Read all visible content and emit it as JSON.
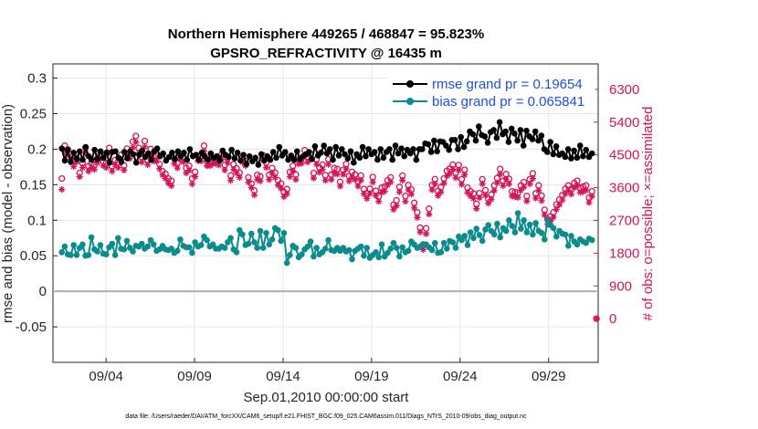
{
  "chart_data": {
    "type": "line",
    "title_line1": "Northern Hemisphere 449265 / 468847 = 95.823%",
    "title_line2": "GPSRO_REFRACTIVITY @ 16435 m",
    "xlabel": "Sep.01,2010 00:00:00 start",
    "ylabel_left": "rmse and bias (model - observation)",
    "ylabel_right": "# of obs: o=possible; ×=assimilated",
    "footer": "data file: /Users/raeder/DAI/ATM_forcXX/CAM6_setup/f.e21.FHIST_BGC.f09_025.CAM6assim.011/Diags_NTrS_2010-09/obs_diag_output.nc",
    "x_start_day": 1,
    "x_range_days": [
      1.0,
      31.8
    ],
    "x_ticks": [
      {
        "day": 4,
        "label": "09/04"
      },
      {
        "day": 9,
        "label": "09/09"
      },
      {
        "day": 14,
        "label": "09/14"
      },
      {
        "day": 19,
        "label": "09/19"
      },
      {
        "day": 24,
        "label": "09/24"
      },
      {
        "day": 29,
        "label": "09/29"
      }
    ],
    "ylim_left": [
      -0.1,
      0.32
    ],
    "yticks_left": [
      "-0.05",
      "0",
      "0.05",
      "0.1",
      "0.15",
      "0.2",
      "0.25",
      "0.3"
    ],
    "yticks_left_values": [
      -0.05,
      0,
      0.05,
      0.1,
      0.15,
      0.2,
      0.25,
      0.3
    ],
    "ylim_right": [
      -1200,
      7000
    ],
    "yticks_right": [
      "0",
      "900",
      "1800",
      "2700",
      "3600",
      "4500",
      "5400",
      "6300"
    ],
    "yticks_right_values": [
      0,
      900,
      1800,
      2700,
      3600,
      4500,
      5400,
      6300
    ],
    "zero_line": true,
    "grid": true,
    "legend_placement": "top-right",
    "colors": {
      "rmse": "#000000",
      "bias": "#0a8c8c",
      "obs": "#d4145a",
      "legend_text": "#1f4fe0",
      "zero_line": "#b0b0b0",
      "grid": "#e6e6e6"
    },
    "series": [
      {
        "name": "rmse grand pr = 0.19654",
        "key": "rmse",
        "axis": "left",
        "style": "line-dot",
        "values": [
          0.201,
          0.184,
          0.199,
          0.182,
          0.195,
          0.186,
          0.197,
          0.185,
          0.203,
          0.19,
          0.185,
          0.199,
          0.186,
          0.197,
          0.188,
          0.195,
          0.181,
          0.196,
          0.197,
          0.188,
          0.182,
          0.196,
          0.187,
          0.197,
          0.193,
          0.181,
          0.192,
          0.198,
          0.189,
          0.194,
          0.185,
          0.197,
          0.201,
          0.19,
          0.194,
          0.184,
          0.189,
          0.195,
          0.186,
          0.197,
          0.19,
          0.195,
          0.185,
          0.2,
          0.19,
          0.192,
          0.185,
          0.195,
          0.19,
          0.185,
          0.194,
          0.188,
          0.19,
          0.184,
          0.198,
          0.192,
          0.189,
          0.199,
          0.187,
          0.195,
          0.184,
          0.192,
          0.179,
          0.19,
          0.183,
          0.188,
          0.178,
          0.193,
          0.184,
          0.19,
          0.185,
          0.196,
          0.188,
          0.203,
          0.191,
          0.196,
          0.185,
          0.191,
          0.185,
          0.197,
          0.186,
          0.19,
          0.193,
          0.196,
          0.186,
          0.204,
          0.191,
          0.195,
          0.205,
          0.194,
          0.2,
          0.185,
          0.203,
          0.191,
          0.2,
          0.193,
          0.187,
          0.197,
          0.181,
          0.193,
          0.188,
          0.203,
          0.19,
          0.2,
          0.193,
          0.196,
          0.185,
          0.2,
          0.188,
          0.196,
          0.2,
          0.185,
          0.205,
          0.194,
          0.201,
          0.19,
          0.199,
          0.194,
          0.2,
          0.185,
          0.2,
          0.2,
          0.208,
          0.207,
          0.196,
          0.212,
          0.197,
          0.211,
          0.21,
          0.205,
          0.199,
          0.213,
          0.213,
          0.2,
          0.217,
          0.203,
          0.211,
          0.225,
          0.221,
          0.212,
          0.232,
          0.22,
          0.218,
          0.209,
          0.224,
          0.227,
          0.216,
          0.238,
          0.221,
          0.225,
          0.21,
          0.229,
          0.222,
          0.212,
          0.227,
          0.205,
          0.226,
          0.218,
          0.214,
          0.225,
          0.212,
          0.219,
          0.2,
          0.196,
          0.21,
          0.193,
          0.204,
          0.192,
          0.194,
          0.189,
          0.2,
          0.187,
          0.198,
          0.188,
          0.205,
          0.19,
          0.199,
          0.189,
          0.194
        ]
      },
      {
        "name": "bias grand pr = 0.065841",
        "key": "bias",
        "axis": "left",
        "style": "line-dot",
        "values": [
          0.055,
          0.063,
          0.052,
          0.051,
          0.065,
          0.051,
          0.061,
          0.066,
          0.05,
          0.051,
          0.076,
          0.059,
          0.056,
          0.065,
          0.053,
          0.052,
          0.062,
          0.067,
          0.051,
          0.075,
          0.06,
          0.059,
          0.071,
          0.061,
          0.056,
          0.064,
          0.063,
          0.067,
          0.06,
          0.063,
          0.072,
          0.066,
          0.057,
          0.059,
          0.064,
          0.059,
          0.058,
          0.06,
          0.054,
          0.057,
          0.073,
          0.064,
          0.062,
          0.062,
          0.054,
          0.069,
          0.063,
          0.065,
          0.077,
          0.072,
          0.063,
          0.066,
          0.06,
          0.06,
          0.063,
          0.061,
          0.069,
          0.075,
          0.059,
          0.055,
          0.086,
          0.08,
          0.065,
          0.067,
          0.081,
          0.069,
          0.061,
          0.085,
          0.061,
          0.082,
          0.066,
          0.073,
          0.089,
          0.086,
          0.071,
          0.082,
          0.04,
          0.051,
          0.064,
          0.061,
          0.048,
          0.052,
          0.059,
          0.063,
          0.07,
          0.049,
          0.061,
          0.052,
          0.055,
          0.06,
          0.072,
          0.058,
          0.057,
          0.061,
          0.057,
          0.061,
          0.056,
          0.058,
          0.045,
          0.057,
          0.06,
          0.063,
          0.05,
          0.061,
          0.047,
          0.051,
          0.055,
          0.048,
          0.066,
          0.049,
          0.054,
          0.06,
          0.068,
          0.061,
          0.049,
          0.062,
          0.055,
          0.057,
          0.07,
          0.066,
          0.061,
          0.063,
          0.066,
          0.066,
          0.062,
          0.058,
          0.068,
          0.054,
          0.055,
          0.068,
          0.06,
          0.071,
          0.069,
          0.061,
          0.077,
          0.072,
          0.078,
          0.065,
          0.083,
          0.075,
          0.088,
          0.079,
          0.071,
          0.087,
          0.093,
          0.085,
          0.08,
          0.095,
          0.076,
          0.089,
          0.085,
          0.1,
          0.092,
          0.083,
          0.11,
          0.088,
          0.1,
          0.083,
          0.094,
          0.08,
          0.096,
          0.085,
          0.082,
          0.073,
          0.1,
          0.093,
          0.089,
          0.077,
          0.085,
          0.081,
          0.08,
          0.064,
          0.078,
          0.07,
          0.066,
          0.073,
          0.07,
          0.068,
          0.074,
          0.072
        ]
      },
      {
        "name": "possible",
        "key": "possible",
        "axis": "right",
        "style": "circle",
        "values": [
          3850,
          4750,
          4650,
          4520,
          4330,
          4420,
          4000,
          4280,
          4700,
          4190,
          4260,
          4230,
          4410,
          4520,
          4310,
          4280,
          4690,
          4190,
          4360,
          4300,
          4500,
          4210,
          4670,
          4550,
          4860,
          5020,
          4690,
          4440,
          4880,
          4360,
          4660,
          4460,
          4470,
          4250,
          4050,
          3980,
          3850,
          3790,
          4400,
          4280,
          4520,
          4440,
          4140,
          4200,
          3850,
          4030,
          4480,
          4470,
          4750,
          4330,
          4330,
          4390,
          4400,
          4360,
          4520,
          4220,
          4420,
          3930,
          4240,
          4130,
          4010,
          4430,
          4330,
          3880,
          3710,
          3520,
          3950,
          3910,
          4490,
          4290,
          3950,
          4140,
          4010,
          3800,
          3710,
          3480,
          3560,
          4030,
          4200,
          3960,
          4390,
          4410,
          4630,
          4440,
          4530,
          4000,
          4380,
          4150,
          4230,
          3940,
          4380,
          3960,
          4140,
          4110,
          3760,
          4090,
          4250,
          3920,
          4030,
          3960,
          3770,
          3930,
          3560,
          3440,
          3570,
          3890,
          3510,
          3360,
          3600,
          3630,
          3800,
          3880,
          3130,
          3250,
          3620,
          3930,
          3370,
          3670,
          3550,
          3180,
          2920,
          2500,
          2040,
          2480,
          3020,
          3670,
          3830,
          3510,
          3610,
          3850,
          4060,
          4120,
          4230,
          4010,
          4220,
          3830,
          4090,
          3600,
          3500,
          3440,
          3150,
          3450,
          3830,
          3530,
          3300,
          3410,
          3660,
          3860,
          4110,
          3790,
          3970,
          3840,
          3500,
          3480,
          3460,
          3660,
          3750,
          3370,
          3830,
          3990,
          3440,
          3660,
          3380,
          2990,
          2730,
          2810,
          2920,
          3140,
          3270,
          3400,
          3570,
          3660,
          3560,
          3730,
          3790,
          3600,
          3630,
          3660,
          3330,
          3500
        ]
      },
      {
        "name": "assimilated",
        "key": "assimilated",
        "axis": "right",
        "style": "asterisk",
        "values": [
          3550,
          4600,
          4500,
          4380,
          4180,
          4300,
          3900,
          4150,
          4550,
          4050,
          4150,
          4100,
          4280,
          4400,
          4200,
          4150,
          4550,
          4050,
          4230,
          4150,
          4380,
          4080,
          4530,
          4400,
          4700,
          4850,
          4550,
          4300,
          4720,
          4230,
          4500,
          4330,
          4330,
          4120,
          3950,
          3850,
          3720,
          3650,
          4260,
          4140,
          4380,
          4300,
          4000,
          4070,
          3700,
          3900,
          4340,
          4330,
          4600,
          4200,
          4200,
          4250,
          4270,
          4220,
          4380,
          4080,
          4280,
          3800,
          4100,
          4000,
          3880,
          4300,
          4200,
          3750,
          3600,
          3400,
          3820,
          3780,
          4350,
          4150,
          3820,
          4000,
          3880,
          3670,
          3580,
          3350,
          3430,
          3900,
          4060,
          3820,
          4250,
          4270,
          4480,
          4300,
          4390,
          3860,
          4240,
          4020,
          4100,
          3800,
          4240,
          3820,
          4000,
          3970,
          3640,
          3960,
          4110,
          3780,
          3890,
          3820,
          3640,
          3800,
          3430,
          3300,
          3440,
          3750,
          3380,
          3220,
          3470,
          3500,
          3670,
          3750,
          3000,
          3100,
          3480,
          3800,
          3220,
          3540,
          3420,
          3040,
          2780,
          2380,
          1900,
          2330,
          2870,
          3540,
          3700,
          3380,
          3480,
          3720,
          3920,
          3980,
          4100,
          3870,
          4080,
          3690,
          3950,
          3460,
          3370,
          3300,
          3020,
          3320,
          3700,
          3390,
          3170,
          3280,
          3520,
          3730,
          3970,
          3650,
          3830,
          3700,
          3370,
          3350,
          3330,
          3530,
          3610,
          3230,
          3700,
          3850,
          3310,
          3520,
          3240,
          2850,
          2600,
          2680,
          2790,
          3000,
          3130,
          3260,
          3430,
          3520,
          3420,
          3600,
          3650,
          3470,
          3490,
          3530,
          3190,
          3360
        ]
      }
    ],
    "outlier_possible": {
      "day": 31.7,
      "value": 0
    },
    "outlier_assimilated": {
      "day": 31.7,
      "value": 0
    }
  }
}
